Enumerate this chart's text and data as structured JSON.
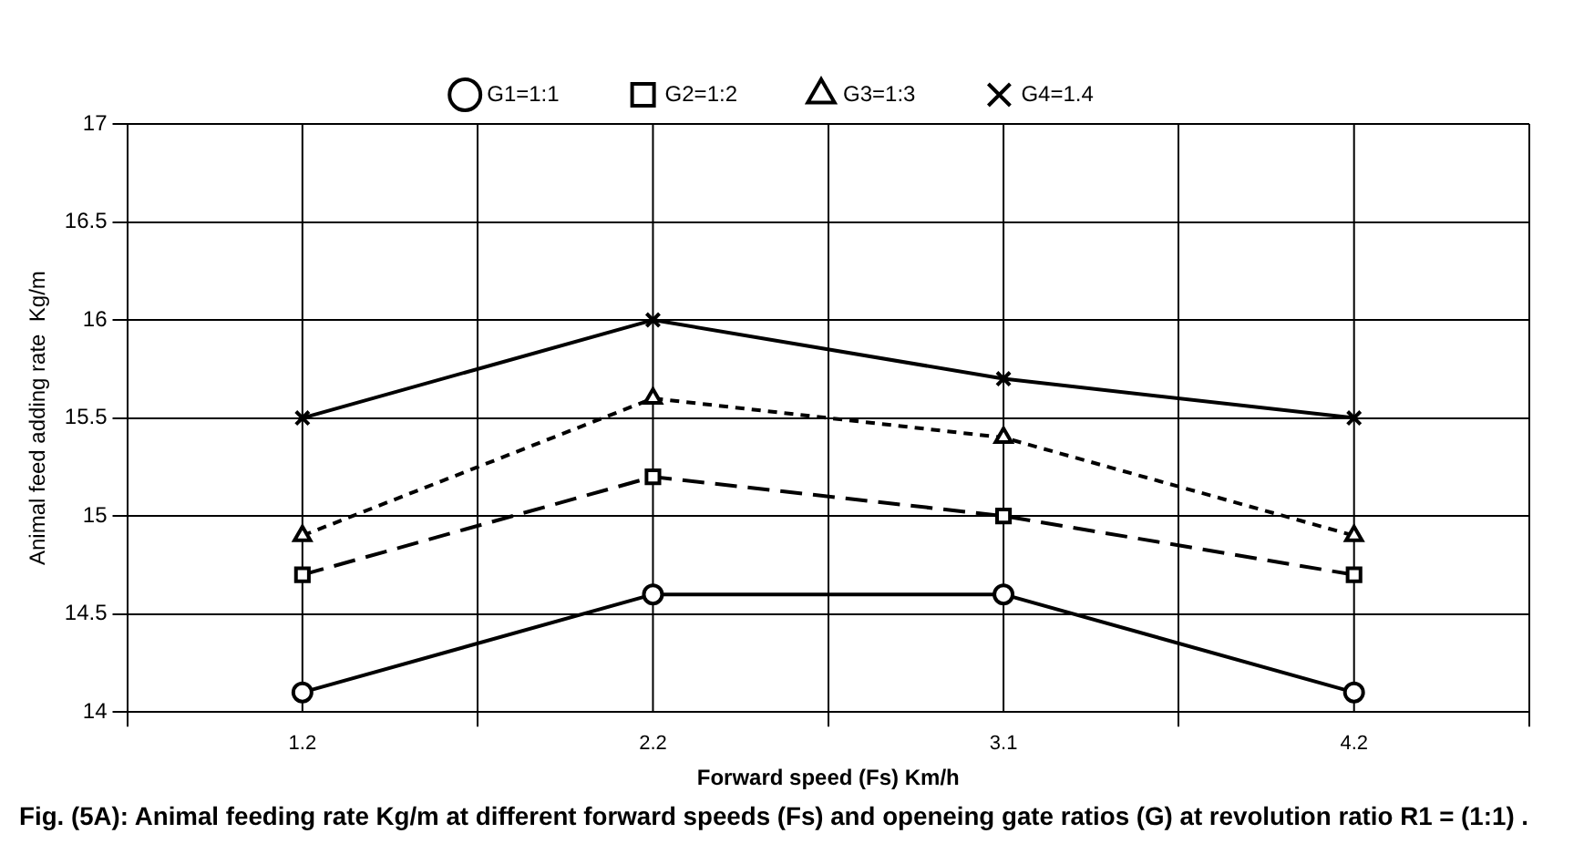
{
  "chart_data": {
    "type": "line",
    "title": "Fig. (5A): Animal feeding rate Kg/m at different forward speeds (Fs) and openeing gate ratios (G) at revolution ratio R1 = (1:1) .",
    "xlabel": "Forward speed (Fs) Km/h",
    "ylabel": "Animal feed adding rate  Kg/m",
    "categories": [
      "1.2",
      "2.2",
      "3.1",
      "4.2"
    ],
    "series": [
      {
        "name": "G1=1:1",
        "color": "#000000",
        "marker": "circle",
        "line_style": "solid",
        "values": [
          14.1,
          14.6,
          14.6,
          14.1
        ]
      },
      {
        "name": "G2=1:2",
        "color": "#000000",
        "marker": "square",
        "line_style": "dashed",
        "values": [
          14.7,
          15.2,
          15.0,
          14.7
        ]
      },
      {
        "name": "G3=1:3",
        "color": "#000000",
        "marker": "triangle",
        "line_style": "dotted",
        "values": [
          14.9,
          15.6,
          15.4,
          14.9
        ]
      },
      {
        "name": "G4=1.4",
        "color": "#000000",
        "marker": "cross",
        "line_style": "solid",
        "values": [
          15.5,
          16.0,
          15.7,
          15.5
        ]
      }
    ],
    "ylim": [
      14,
      17
    ],
    "yticks": [
      14,
      14.5,
      15,
      15.5,
      16,
      16.5,
      17
    ],
    "grid": true,
    "legend": "top"
  }
}
